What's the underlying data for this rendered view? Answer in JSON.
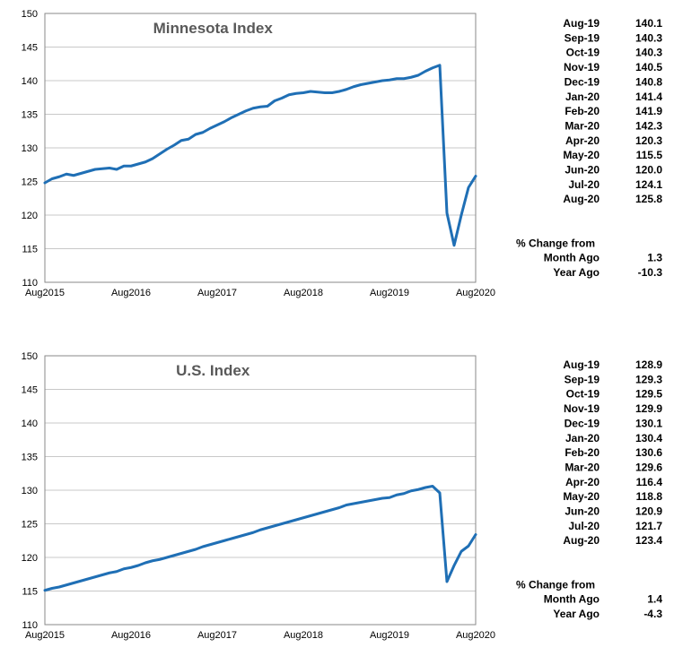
{
  "chart_data": [
    {
      "type": "line",
      "title": "Minnesota Index",
      "xlabel": "",
      "ylabel": "",
      "ylim": [
        110,
        150
      ],
      "yticks": [
        "150",
        "145",
        "140",
        "135",
        "130",
        "125",
        "120",
        "115",
        "110"
      ],
      "xticks": [
        "Aug2015",
        "Aug2016",
        "Aug2017",
        "Aug2018",
        "Aug2019",
        "Aug2020"
      ],
      "grid": true,
      "color": "#1f6fb5",
      "x": [
        "Aug2015",
        "Sep2015",
        "Oct2015",
        "Nov2015",
        "Dec2015",
        "Jan2016",
        "Feb2016",
        "Mar2016",
        "Apr2016",
        "May2016",
        "Jun2016",
        "Jul2016",
        "Aug2016",
        "Sep2016",
        "Oct2016",
        "Nov2016",
        "Dec2016",
        "Jan2017",
        "Feb2017",
        "Mar2017",
        "Apr2017",
        "May2017",
        "Jun2017",
        "Jul2017",
        "Aug2017",
        "Sep2017",
        "Oct2017",
        "Nov2017",
        "Dec2017",
        "Jan2018",
        "Feb2018",
        "Mar2018",
        "Apr2018",
        "May2018",
        "Jun2018",
        "Jul2018",
        "Aug2018",
        "Sep2018",
        "Oct2018",
        "Nov2018",
        "Dec2018",
        "Jan2019",
        "Feb2019",
        "Mar2019",
        "Apr2019",
        "May2019",
        "Jun2019",
        "Jul2019",
        "Aug2019",
        "Sep2019",
        "Oct2019",
        "Nov2019",
        "Dec2019",
        "Jan2020",
        "Feb2020",
        "Mar2020",
        "Apr2020",
        "May2020",
        "Jun2020",
        "Jul2020",
        "Aug2020"
      ],
      "values": [
        124.8,
        125.4,
        125.7,
        126.1,
        125.9,
        126.2,
        126.5,
        126.8,
        126.9,
        127.0,
        126.8,
        127.3,
        127.3,
        127.6,
        127.9,
        128.4,
        129.1,
        129.8,
        130.4,
        131.1,
        131.3,
        132.0,
        132.3,
        132.9,
        133.4,
        133.9,
        134.5,
        135.0,
        135.5,
        135.9,
        136.1,
        136.2,
        137.0,
        137.4,
        137.9,
        138.1,
        138.2,
        138.4,
        138.3,
        138.2,
        138.2,
        138.4,
        138.7,
        139.1,
        139.4,
        139.6,
        139.8,
        140.0,
        140.1,
        140.3,
        140.3,
        140.5,
        140.8,
        141.4,
        141.9,
        142.3,
        120.3,
        115.5,
        120.0,
        124.1,
        125.8
      ],
      "table": {
        "rows": [
          {
            "label": "Aug-19",
            "value": "140.1"
          },
          {
            "label": "Sep-19",
            "value": "140.3"
          },
          {
            "label": "Oct-19",
            "value": "140.3"
          },
          {
            "label": "Nov-19",
            "value": "140.5"
          },
          {
            "label": "Dec-19",
            "value": "140.8"
          },
          {
            "label": "Jan-20",
            "value": "141.4"
          },
          {
            "label": "Feb-20",
            "value": "141.9"
          },
          {
            "label": "Mar-20",
            "value": "142.3"
          },
          {
            "label": "Apr-20",
            "value": "120.3"
          },
          {
            "label": "May-20",
            "value": "115.5"
          },
          {
            "label": "Jun-20",
            "value": "120.0"
          },
          {
            "label": "Jul-20",
            "value": "124.1"
          },
          {
            "label": "Aug-20",
            "value": "125.8"
          }
        ],
        "change_header": "% Change from",
        "change_rows": [
          {
            "label": "Month Ago",
            "value": "1.3"
          },
          {
            "label": "Year Ago",
            "value": "-10.3"
          }
        ]
      }
    },
    {
      "type": "line",
      "title": "U.S. Index",
      "xlabel": "",
      "ylabel": "",
      "ylim": [
        110,
        150
      ],
      "yticks": [
        "150",
        "145",
        "140",
        "135",
        "130",
        "125",
        "120",
        "115",
        "110"
      ],
      "xticks": [
        "Aug2015",
        "Aug2016",
        "Aug2017",
        "Aug2018",
        "Aug2019",
        "Aug2020"
      ],
      "grid": true,
      "color": "#1f6fb5",
      "x": [
        "Aug2015",
        "Sep2015",
        "Oct2015",
        "Nov2015",
        "Dec2015",
        "Jan2016",
        "Feb2016",
        "Mar2016",
        "Apr2016",
        "May2016",
        "Jun2016",
        "Jul2016",
        "Aug2016",
        "Sep2016",
        "Oct2016",
        "Nov2016",
        "Dec2016",
        "Jan2017",
        "Feb2017",
        "Mar2017",
        "Apr2017",
        "May2017",
        "Jun2017",
        "Jul2017",
        "Aug2017",
        "Sep2017",
        "Oct2017",
        "Nov2017",
        "Dec2017",
        "Jan2018",
        "Feb2018",
        "Mar2018",
        "Apr2018",
        "May2018",
        "Jun2018",
        "Jul2018",
        "Aug2018",
        "Sep2018",
        "Oct2018",
        "Nov2018",
        "Dec2018",
        "Jan2019",
        "Feb2019",
        "Mar2019",
        "Apr2019",
        "May2019",
        "Jun2019",
        "Jul2019",
        "Aug2019",
        "Sep2019",
        "Oct2019",
        "Nov2019",
        "Dec2019",
        "Jan2020",
        "Feb2020",
        "Mar2020",
        "Apr2020",
        "May2020",
        "Jun2020",
        "Jul2020",
        "Aug2020"
      ],
      "values": [
        115.1,
        115.4,
        115.6,
        115.9,
        116.2,
        116.5,
        116.8,
        117.1,
        117.4,
        117.7,
        117.9,
        118.3,
        118.5,
        118.8,
        119.2,
        119.5,
        119.7,
        120.0,
        120.3,
        120.6,
        120.9,
        121.2,
        121.6,
        121.9,
        122.2,
        122.5,
        122.8,
        123.1,
        123.4,
        123.7,
        124.1,
        124.4,
        124.7,
        125.0,
        125.3,
        125.6,
        125.9,
        126.2,
        126.5,
        126.8,
        127.1,
        127.4,
        127.8,
        128.0,
        128.2,
        128.4,
        128.6,
        128.8,
        128.9,
        129.3,
        129.5,
        129.9,
        130.1,
        130.4,
        130.6,
        129.6,
        116.4,
        118.8,
        120.9,
        121.7,
        123.4
      ],
      "table": {
        "rows": [
          {
            "label": "Aug-19",
            "value": "128.9"
          },
          {
            "label": "Sep-19",
            "value": "129.3"
          },
          {
            "label": "Oct-19",
            "value": "129.5"
          },
          {
            "label": "Nov-19",
            "value": "129.9"
          },
          {
            "label": "Dec-19",
            "value": "130.1"
          },
          {
            "label": "Jan-20",
            "value": "130.4"
          },
          {
            "label": "Feb-20",
            "value": "130.6"
          },
          {
            "label": "Mar-20",
            "value": "129.6"
          },
          {
            "label": "Apr-20",
            "value": "116.4"
          },
          {
            "label": "May-20",
            "value": "118.8"
          },
          {
            "label": "Jun-20",
            "value": "120.9"
          },
          {
            "label": "Jul-20",
            "value": "121.7"
          },
          {
            "label": "Aug-20",
            "value": "123.4"
          }
        ],
        "change_header": "% Change from",
        "change_rows": [
          {
            "label": "Month Ago",
            "value": "1.4"
          },
          {
            "label": "Year Ago",
            "value": "-4.3"
          }
        ]
      }
    }
  ]
}
